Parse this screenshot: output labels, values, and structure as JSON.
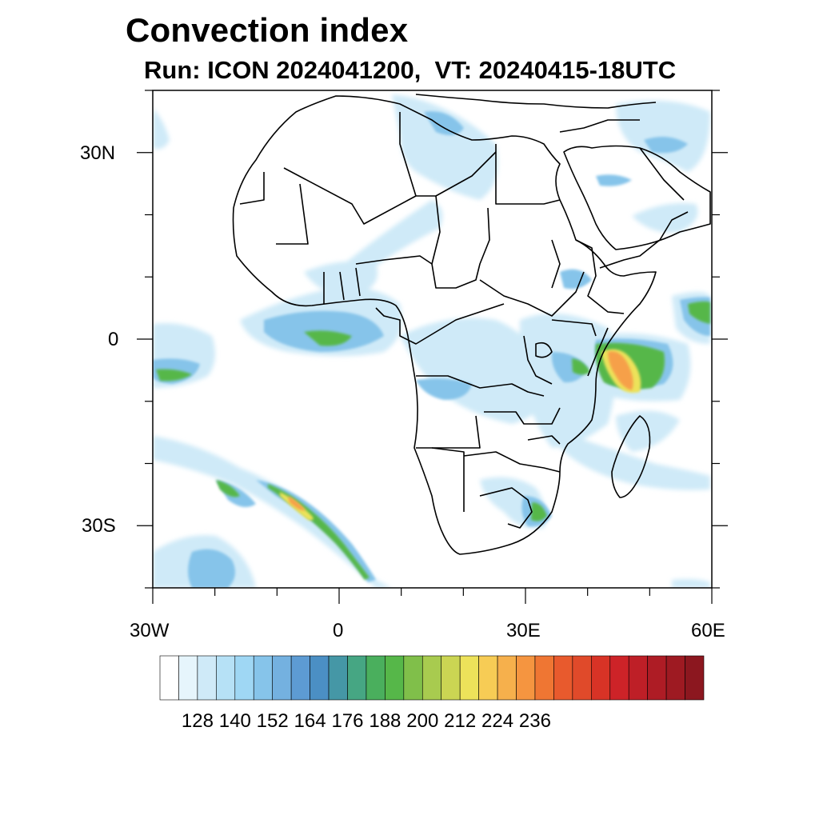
{
  "title": "Convection index",
  "subtitle": "Run: ICON 2024041200,  VT: 20240415-18UTC",
  "axes": {
    "lon_labels": [
      "30W",
      "0",
      "30E",
      "60E"
    ],
    "lat_labels": [
      "30N",
      "0",
      "30S"
    ],
    "lon_range": [
      -30,
      60
    ],
    "lat_range": [
      -40,
      40
    ]
  },
  "colorbar": {
    "tick_labels": [
      "128",
      "140",
      "152",
      "164",
      "176",
      "188",
      "200",
      "212",
      "224",
      "236"
    ],
    "colors": [
      "#ffffff",
      "#e6f5fc",
      "#cfeaf8",
      "#b6e1f6",
      "#9fd7f4",
      "#86c4ea",
      "#74b1e0",
      "#5d9bd3",
      "#4b8fc4",
      "#4597a6",
      "#46a683",
      "#4aaf5d",
      "#56b749",
      "#80bf4a",
      "#a8cb4f",
      "#cbd553",
      "#ede25a",
      "#f7cc55",
      "#f6b04c",
      "#f59540",
      "#ef7633",
      "#e85a2d",
      "#e04a2a",
      "#d83326",
      "#cd2328",
      "#be1f27",
      "#ae1c25",
      "#9e1a22",
      "#8c171f"
    ]
  },
  "field_colors": {
    "light": "#cfeaf8",
    "blue": "#86c4ea",
    "mid": "#5d9bd3",
    "teal": "#4597a6",
    "green": "#56b749",
    "yellow": "#ede25a",
    "orange": "#f6a04a",
    "red": "#e04a2a"
  }
}
